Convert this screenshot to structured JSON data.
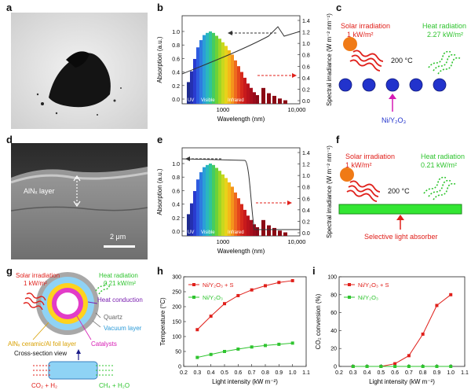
{
  "panels": {
    "a": "a",
    "b": "b",
    "c": "c",
    "d": "d",
    "e": "e",
    "f": "f",
    "g": "g",
    "h": "h",
    "i": "i"
  },
  "spectrum": {
    "xlabel": "Wavelength (nm)",
    "ylabel_left": "Absorption (a.u.)",
    "ylabel_right": "Spectral irradiance (W m⁻² nm⁻¹)",
    "xticks": [
      "1000",
      "10,000"
    ],
    "yticks_left": [
      "0.0",
      "0.2",
      "0.4",
      "0.6",
      "0.8",
      "1.0"
    ],
    "yticks_right": [
      "0.0",
      "0.2",
      "0.4",
      "0.6",
      "0.8",
      "1.0",
      "1.2",
      "1.4"
    ],
    "band_uv": "UV",
    "band_visible": "Visible",
    "band_infrared": "Infrared"
  },
  "panel_c": {
    "solar": "Solar irradiation",
    "solar_val": "1 kW/m²",
    "heat": "Heat radiation",
    "heat_val": "2.27 kW/m²",
    "temp": "200 °C",
    "material": "Ni/Y₂O₃"
  },
  "panel_d": {
    "layer": "AlNₓ layer",
    "scale": "2 μm"
  },
  "panel_f": {
    "solar": "Solar irradiation",
    "solar_val": "1 kW/m²",
    "heat": "Heat radiation",
    "heat_val": "0.21 kW/m²",
    "temp": "200 °C",
    "absorber": "Selective light absorber"
  },
  "panel_g": {
    "solar": "Solar irradiation",
    "solar_val": "1 kW/m²",
    "heat": "Heat radiation",
    "heat_val": "0.21 kW/m²",
    "conduction": "Heat conduction",
    "quartz": "Quartz",
    "vacuum": "Vacuum layer",
    "catalysts": "Catalysts",
    "foil": "AlNₓ ceramic/Al foil layer",
    "cross": "Cross-section view",
    "inlet": "CO₂ + H₂",
    "outlet": "CH₄ + H₂O"
  },
  "colors": {
    "red": "#e0201b",
    "green": "#2fc42f",
    "blue": "#2233cc",
    "darkred": "#8b0a14"
  },
  "chart_data": [
    {
      "id": "h",
      "type": "line",
      "xlabel": "Light intensity (kW m⁻²)",
      "ylabel": "Temperature (°C)",
      "xlim": [
        0.2,
        1.1
      ],
      "ylim": [
        0,
        300
      ],
      "xticks": [
        0.2,
        0.3,
        0.4,
        0.5,
        0.6,
        0.7,
        0.8,
        0.9,
        1.0,
        1.1
      ],
      "yticks": [
        0,
        50,
        100,
        150,
        200,
        250,
        300
      ],
      "x": [
        0.3,
        0.4,
        0.5,
        0.6,
        0.7,
        0.8,
        0.9,
        1.0
      ],
      "series": [
        {
          "name": "Ni/Y₂O₃ + S",
          "color": "#e0201b",
          "values": [
            123,
            168,
            210,
            237,
            256,
            270,
            281,
            287
          ]
        },
        {
          "name": "Ni/Y₂O₃",
          "color": "#2fc42f",
          "values": [
            30,
            40,
            50,
            58,
            65,
            70,
            74,
            78
          ]
        }
      ],
      "legend": "top-left"
    },
    {
      "id": "i",
      "type": "line",
      "xlabel": "Light intensity (kW m⁻²)",
      "ylabel": "CO₂ conversion (%)",
      "xlim": [
        0.2,
        1.1
      ],
      "ylim": [
        0,
        100
      ],
      "xticks": [
        0.2,
        0.3,
        0.4,
        0.5,
        0.6,
        0.7,
        0.8,
        0.9,
        1.0,
        1.1
      ],
      "yticks": [
        0,
        20,
        40,
        60,
        80,
        100
      ],
      "x": [
        0.3,
        0.4,
        0.5,
        0.6,
        0.7,
        0.8,
        0.9,
        1.0
      ],
      "series": [
        {
          "name": "Ni/Y₂O₃ + S",
          "color": "#e0201b",
          "values": [
            0,
            0,
            0,
            3,
            12,
            36,
            68,
            80
          ]
        },
        {
          "name": "Ni/Y₂O₃",
          "color": "#2fc42f",
          "values": [
            0,
            0,
            0,
            0,
            0,
            0,
            0,
            0
          ]
        }
      ],
      "legend": "top-left"
    }
  ]
}
